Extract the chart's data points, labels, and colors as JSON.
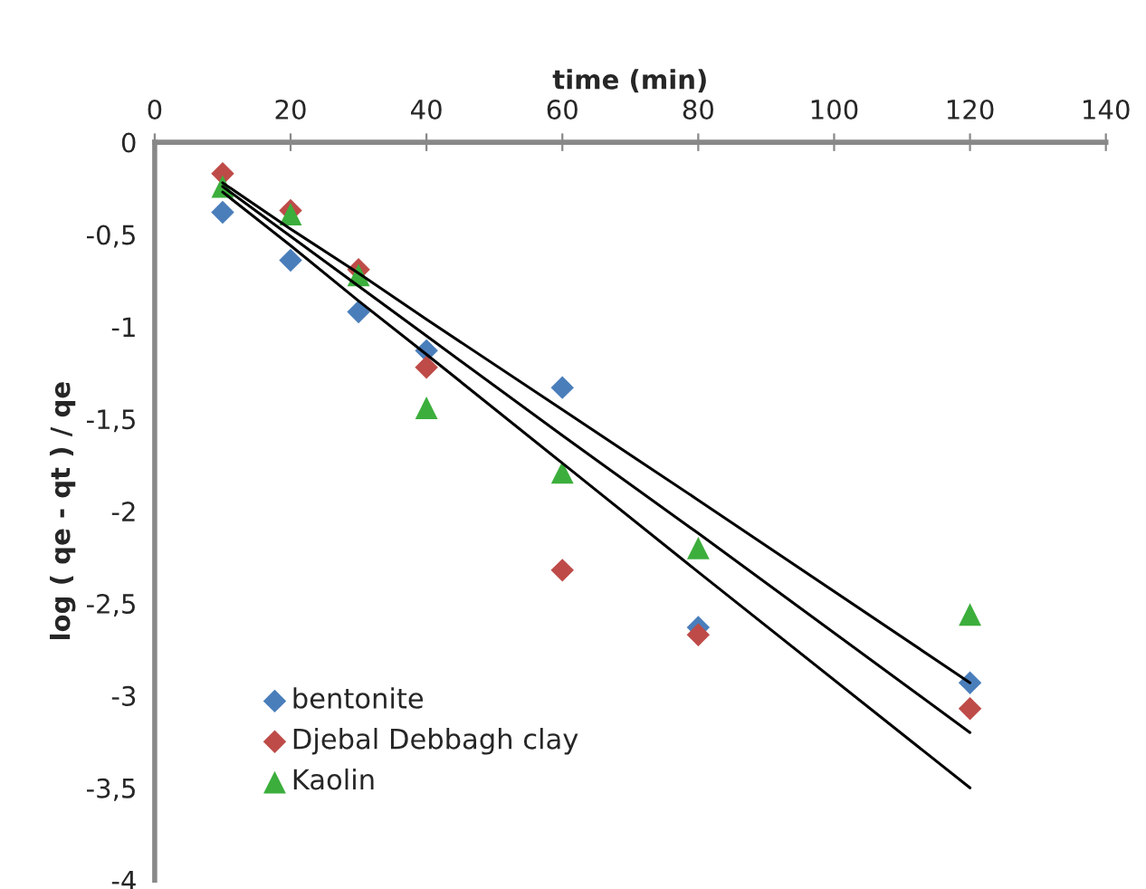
{
  "chart_data": {
    "type": "scatter",
    "xlabel": "time (min)",
    "ylabel": "log ( qe - qt ) / qe",
    "x": [
      10,
      20,
      30,
      40,
      60,
      80,
      120
    ],
    "series": [
      {
        "name": "bentonite",
        "color": "#4a7ebb",
        "marker": "diamond",
        "values": [
          -0.38,
          -0.64,
          -0.92,
          -1.13,
          -1.33,
          -2.63,
          -2.93
        ]
      },
      {
        "name": "Djebal Debbagh clay",
        "color": "#be4b48",
        "marker": "diamond",
        "values": [
          -0.17,
          -0.37,
          -0.69,
          -1.22,
          -2.32,
          -2.67,
          -3.07
        ]
      },
      {
        "name": "Kaolin",
        "color": "#3cae3c",
        "marker": "triangle",
        "values": [
          -0.24,
          -0.39,
          -0.72,
          -1.44,
          -1.79,
          -2.2,
          -2.56
        ]
      },
      {
        "type": "line",
        "color": "#000000",
        "marker": "none",
        "values": [
          -0.22,
          -0.47,
          -0.71,
          -0.96,
          -1.45,
          -1.94,
          -2.93
        ]
      },
      {
        "type": "line",
        "color": "#000000",
        "marker": "none",
        "values": [
          -0.24,
          -0.51,
          -0.78,
          -1.05,
          -1.59,
          -2.12,
          -3.2
        ]
      },
      {
        "type": "line",
        "color": "#000000",
        "marker": "none",
        "values": [
          -0.27,
          -0.56,
          -0.86,
          -1.15,
          -1.74,
          -2.33,
          -3.5
        ]
      }
    ],
    "xlim": [
      0,
      140
    ],
    "xticks": [
      0,
      20,
      40,
      60,
      80,
      100,
      120,
      140
    ],
    "ylim": [
      -4,
      0
    ],
    "yticks": [
      0,
      {
        "value": -0.5,
        "label": "-0,5"
      },
      -1,
      {
        "value": -1.5,
        "label": "-1,5"
      },
      -2,
      {
        "value": -2.5,
        "label": "-2,5"
      },
      -3,
      {
        "value": -3.5,
        "label": "-3,5"
      },
      -4
    ],
    "grid": false,
    "legend": "bottom left",
    "line_style": "solid"
  }
}
